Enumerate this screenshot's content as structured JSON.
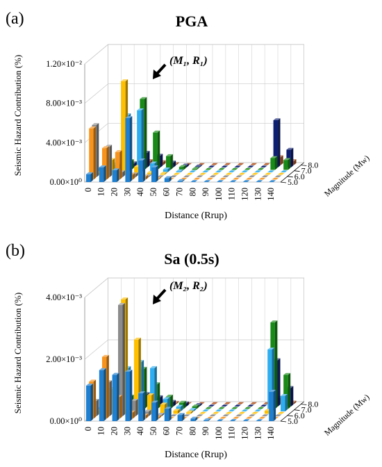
{
  "figure": {
    "panels": [
      {
        "panel_label": "(a)",
        "title": "PGA",
        "ylabel": "Seismic Hazard Contribution (%)",
        "xlabel": "Distance (Rrup)",
        "zlabel": "Magnitude (Mw)",
        "y_ticks": [
          "0.00×10⁰",
          "4.00×10⁻³",
          "8.00×10⁻³",
          "1.20×10⁻²"
        ],
        "x_ticks": [
          "0",
          "10",
          "20",
          "30",
          "40",
          "50",
          "60",
          "70",
          "80",
          "90",
          "100",
          "110",
          "120",
          "130",
          "140"
        ],
        "z_ticks": [
          "5.0",
          "6.0",
          "7.0",
          "8.0"
        ],
        "annotation": "(M₁, R₁)"
      },
      {
        "panel_label": "(b)",
        "title": "Sa (0.5s)",
        "ylabel": "Seismic Hazard Contribution (%)",
        "xlabel": "Distance (Rrup)",
        "zlabel": "Magnitude (Mw)",
        "y_ticks": [
          "0.00×10⁰",
          "2.00×10⁻³",
          "4.00×10⁻³"
        ],
        "x_ticks": [
          "0",
          "10",
          "20",
          "30",
          "40",
          "50",
          "60",
          "70",
          "80",
          "90",
          "100",
          "110",
          "120",
          "130",
          "140"
        ],
        "z_ticks": [
          "5.0",
          "6.0",
          "7.0",
          "8.0"
        ],
        "annotation": "(M₂, R₂)"
      }
    ]
  },
  "chart_data": [
    {
      "type": "bar3d",
      "title": "PGA",
      "xlabel": "Distance (Rrup)",
      "ylabel": "Seismic Hazard Contribution (%)",
      "zlabel": "Magnitude (Mw)",
      "ylim": [
        0,
        0.012
      ],
      "grid": true,
      "distance_bins": [
        0,
        10,
        20,
        30,
        40,
        50,
        60,
        70,
        80,
        90,
        100,
        110,
        120,
        130,
        140
      ],
      "magnitude_rows": [
        {
          "color": "#1f7fd0",
          "values": [
            0.0008,
            0.0015,
            0.0012,
            0.0065,
            0.0022,
            0.0015,
            0.0004,
            0.0001,
            3e-05,
            0,
            0,
            0,
            0,
            0,
            0
          ]
        },
        {
          "color": "#f7941d",
          "values": [
            0.0052,
            0.0032,
            0.0028,
            0.0005,
            0.0003,
            0.0001,
            3e-05,
            0,
            0,
            0,
            0,
            0,
            0,
            0,
            0
          ]
        },
        {
          "color": "#8c8c8c",
          "values": [
            0.0053,
            0.0031,
            0.0005,
            0.0003,
            0.0001,
            0,
            0,
            0,
            0,
            0,
            0,
            0,
            0,
            0,
            0
          ]
        },
        {
          "color": "#ffc000",
          "values": [
            0.0002,
            0.0015,
            0.0095,
            0.0008,
            0.0002,
            0.0001,
            0,
            0,
            0,
            0,
            0,
            0,
            0,
            0,
            0
          ]
        },
        {
          "color": "#2eaef0",
          "values": [
            0.0004,
            0.0008,
            0.0058,
            0.0063,
            0.0009,
            0.0003,
            0.0001,
            0,
            0,
            0,
            0,
            0,
            0,
            0,
            0
          ]
        },
        {
          "color": "#178a17",
          "values": [
            0.0002,
            0.0004,
            0.0009,
            0.0072,
            0.0038,
            0.0014,
            0.0003,
            0.0001,
            0,
            0,
            0,
            0,
            0,
            0.0012,
            0.001
          ]
        },
        {
          "color": "#0d1f70",
          "values": [
            0.0001,
            0.0002,
            0.0004,
            0.0015,
            0.0012,
            0.0005,
            0.0002,
            0.0001,
            0,
            0,
            0,
            0,
            0,
            0.0048,
            0.0018
          ]
        },
        {
          "color": "#b3541e",
          "values": [
            5e-05,
            0.0001,
            0.0002,
            0.0004,
            0.0003,
            0.0001,
            0,
            0,
            0,
            0,
            0,
            0,
            0,
            0.0008,
            0.0004
          ]
        }
      ]
    },
    {
      "type": "bar3d",
      "title": "Sa (0.5s)",
      "xlabel": "Distance (Rrup)",
      "ylabel": "Seismic Hazard Contribution (%)",
      "zlabel": "Magnitude (Mw)",
      "ylim": [
        0,
        0.004
      ],
      "grid": true,
      "distance_bins": [
        0,
        10,
        20,
        30,
        40,
        50,
        60,
        70,
        80,
        90,
        100,
        110,
        120,
        130,
        140
      ],
      "magnitude_rows": [
        {
          "color": "#1f7fd0",
          "values": [
            0.00115,
            0.00165,
            0.0015,
            0.0016,
            0.0009,
            0.0006,
            0.0004,
            0.0002,
            8e-05,
            3e-05,
            0,
            0,
            0,
            0,
            0.00095
          ]
        },
        {
          "color": "#f7941d",
          "values": [
            0.0012,
            0.002,
            0.0007,
            0.0002,
            0.0001,
            5e-05,
            0,
            0,
            0,
            0,
            0,
            0,
            0,
            0,
            0
          ]
        },
        {
          "color": "#8c8c8c",
          "values": [
            0.0005,
            0.0011,
            0.0036,
            0.0005,
            0.00015,
            5e-05,
            0,
            0,
            0,
            0,
            0,
            0,
            0,
            0,
            0
          ]
        },
        {
          "color": "#ffc000",
          "values": [
            0.0001,
            0.0008,
            0.0037,
            0.0024,
            0.0006,
            0.0003,
            0.0001,
            5e-05,
            0,
            0,
            0,
            0,
            0,
            0.0001,
            0
          ]
        },
        {
          "color": "#2eaef0",
          "values": [
            0.0001,
            0.0003,
            0.0014,
            0.0016,
            0.0014,
            0.0004,
            0.00015,
            5e-05,
            0,
            0,
            0,
            0,
            0,
            0.002,
            0.0005
          ]
        },
        {
          "color": "#178a17",
          "values": [
            5e-05,
            0.0001,
            0.0004,
            0.0013,
            0.0008,
            0.0004,
            0.0002,
            8e-05,
            0,
            0,
            0,
            0,
            0,
            0.0028,
            0.0011
          ]
        },
        {
          "color": "#0d1f70",
          "values": [
            0,
            5e-05,
            0.0001,
            0.0004,
            0.0003,
            0.00015,
            0.0001,
            5e-05,
            0,
            0,
            0,
            0,
            0,
            0.0015,
            0.0006
          ]
        },
        {
          "color": "#b3541e",
          "values": [
            0,
            0,
            5e-05,
            0.0001,
            8e-05,
            4e-05,
            0,
            0,
            0,
            0,
            0,
            0,
            0,
            0.0002,
            5e-05
          ]
        }
      ]
    }
  ]
}
